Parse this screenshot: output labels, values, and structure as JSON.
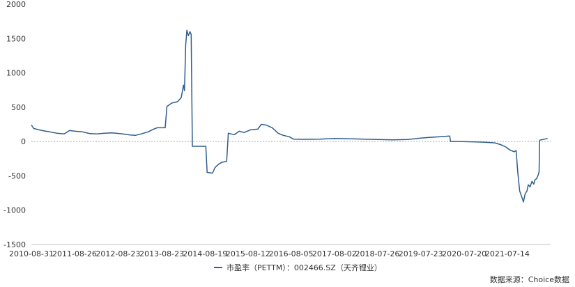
{
  "chart_data": {
    "type": "line",
    "y_ticks": [
      2000,
      1500,
      1000,
      500,
      0,
      -500,
      -1000,
      -1500
    ],
    "ylim": [
      -1500,
      2000
    ],
    "x_ticks": [
      "2010-08-31",
      "2011-08-26",
      "2012-08-23",
      "2013-08-23",
      "2014-08-19",
      "2015-08-12",
      "2016-08-05",
      "2017-08-02",
      "2018-07-26",
      "2019-07-23",
      "2020-07-20",
      "2021-07-14"
    ],
    "series": [
      {
        "name": "市盈率（PETTM）：002466.SZ（天齐锂业）",
        "color": "#2F5D8C",
        "points": [
          [
            "2010-08-31",
            240
          ],
          [
            "2010-09-20",
            190
          ],
          [
            "2010-11-01",
            170
          ],
          [
            "2010-12-15",
            155
          ],
          [
            "2011-02-01",
            140
          ],
          [
            "2011-04-01",
            120
          ],
          [
            "2011-06-01",
            110
          ],
          [
            "2011-07-15",
            160
          ],
          [
            "2011-09-01",
            150
          ],
          [
            "2011-11-01",
            140
          ],
          [
            "2012-01-01",
            115
          ],
          [
            "2012-03-01",
            110
          ],
          [
            "2012-05-01",
            120
          ],
          [
            "2012-07-01",
            125
          ],
          [
            "2012-08-23",
            118
          ],
          [
            "2012-10-01",
            110
          ],
          [
            "2012-12-01",
            95
          ],
          [
            "2013-01-15",
            90
          ],
          [
            "2013-03-01",
            110
          ],
          [
            "2013-05-01",
            140
          ],
          [
            "2013-06-15",
            180
          ],
          [
            "2013-07-15",
            200
          ],
          [
            "2013-09-20",
            200
          ],
          [
            "2013-10-05",
            510
          ],
          [
            "2013-11-15",
            560
          ],
          [
            "2014-01-01",
            580
          ],
          [
            "2014-02-01",
            640
          ],
          [
            "2014-02-20",
            820
          ],
          [
            "2014-02-28",
            740
          ],
          [
            "2014-03-10",
            1400
          ],
          [
            "2014-03-20",
            1620
          ],
          [
            "2014-04-01",
            1540
          ],
          [
            "2014-04-15",
            1600
          ],
          [
            "2014-04-25",
            1560
          ],
          [
            "2014-05-05",
            -70
          ],
          [
            "2014-08-25",
            -70
          ],
          [
            "2014-09-05",
            -450
          ],
          [
            "2014-10-20",
            -460
          ],
          [
            "2014-11-10",
            -380
          ],
          [
            "2014-12-10",
            -330
          ],
          [
            "2015-01-10",
            -300
          ],
          [
            "2015-02-15",
            -290
          ],
          [
            "2015-03-01",
            120
          ],
          [
            "2015-04-20",
            100
          ],
          [
            "2015-06-01",
            150
          ],
          [
            "2015-07-10",
            130
          ],
          [
            "2015-09-01",
            170
          ],
          [
            "2015-11-01",
            180
          ],
          [
            "2015-12-01",
            250
          ],
          [
            "2016-01-10",
            240
          ],
          [
            "2016-03-01",
            200
          ],
          [
            "2016-04-20",
            120
          ],
          [
            "2016-06-01",
            90
          ],
          [
            "2016-07-20",
            70
          ],
          [
            "2016-08-25",
            35
          ],
          [
            "2016-12-01",
            32
          ],
          [
            "2017-04-01",
            35
          ],
          [
            "2017-08-02",
            45
          ],
          [
            "2017-12-01",
            40
          ],
          [
            "2018-04-01",
            35
          ],
          [
            "2018-08-01",
            30
          ],
          [
            "2018-12-01",
            25
          ],
          [
            "2019-04-01",
            30
          ],
          [
            "2019-06-01",
            40
          ],
          [
            "2019-07-23",
            50
          ],
          [
            "2019-10-01",
            60
          ],
          [
            "2020-01-01",
            70
          ],
          [
            "2020-03-20",
            80
          ],
          [
            "2020-03-28",
            0
          ],
          [
            "2020-06-01",
            0
          ],
          [
            "2020-10-01",
            -5
          ],
          [
            "2021-01-01",
            -10
          ],
          [
            "2021-04-01",
            -20
          ],
          [
            "2021-05-20",
            -45
          ],
          [
            "2021-07-01",
            -80
          ],
          [
            "2021-08-01",
            -120
          ],
          [
            "2021-09-10",
            -150
          ],
          [
            "2021-09-25",
            -130
          ],
          [
            "2021-10-10",
            -460
          ],
          [
            "2021-10-25",
            -720
          ],
          [
            "2021-11-10",
            -800
          ],
          [
            "2021-11-25",
            -880
          ],
          [
            "2021-12-10",
            -760
          ],
          [
            "2021-12-25",
            -720
          ],
          [
            "2022-01-05",
            -630
          ],
          [
            "2022-01-20",
            -660
          ],
          [
            "2022-02-05",
            -580
          ],
          [
            "2022-02-20",
            -620
          ],
          [
            "2022-03-01",
            -560
          ],
          [
            "2022-03-15",
            -540
          ],
          [
            "2022-03-28",
            -490
          ],
          [
            "2022-04-05",
            -440
          ],
          [
            "2022-04-10",
            20
          ],
          [
            "2022-05-10",
            30
          ],
          [
            "2022-06-15",
            45
          ]
        ]
      }
    ]
  },
  "legend": {
    "label": "市盈率（PETTM）：002466.SZ（天齐锂业）"
  },
  "source": "数据来源：Choice数据"
}
